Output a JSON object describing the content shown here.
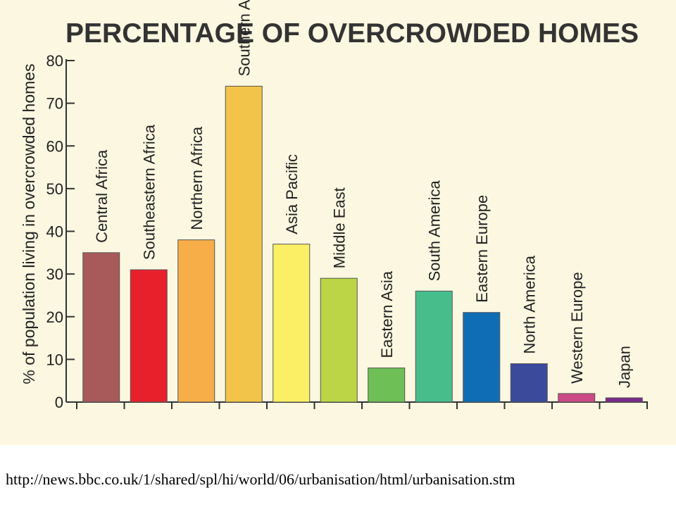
{
  "chart_data": {
    "type": "bar",
    "title": "PERCENTAGE OF OVERCROWDED HOMES",
    "ylabel": "% of population living in overcrowded homes",
    "xlabel": "",
    "ylim": [
      0,
      80
    ],
    "yticks": [
      0,
      10,
      20,
      30,
      40,
      50,
      60,
      70,
      80
    ],
    "grid": false,
    "categories": [
      "Central Africa",
      "Southeastern Africa",
      "Northern Africa",
      "Southern Asia",
      "Asia Pacific",
      "Middle East",
      "Eastern Asia",
      "South America",
      "Eastern Europe",
      "North America",
      "Western Europe",
      "Japan"
    ],
    "values": [
      35,
      31,
      38,
      74,
      37,
      29,
      8,
      26,
      21,
      9,
      2,
      1
    ],
    "colors": [
      "#a85a5a",
      "#e8202c",
      "#f7ae48",
      "#f2c54a",
      "#fbf065",
      "#bcd547",
      "#6ebf55",
      "#48bd8c",
      "#0f6db6",
      "#3c4a9c",
      "#cc4a86",
      "#7a2a8c"
    ]
  },
  "footer": {
    "source_url": "http://news.bbc.co.uk/1/shared/spl/hi/world/06/urbanisation/html/urbanisation.stm"
  }
}
